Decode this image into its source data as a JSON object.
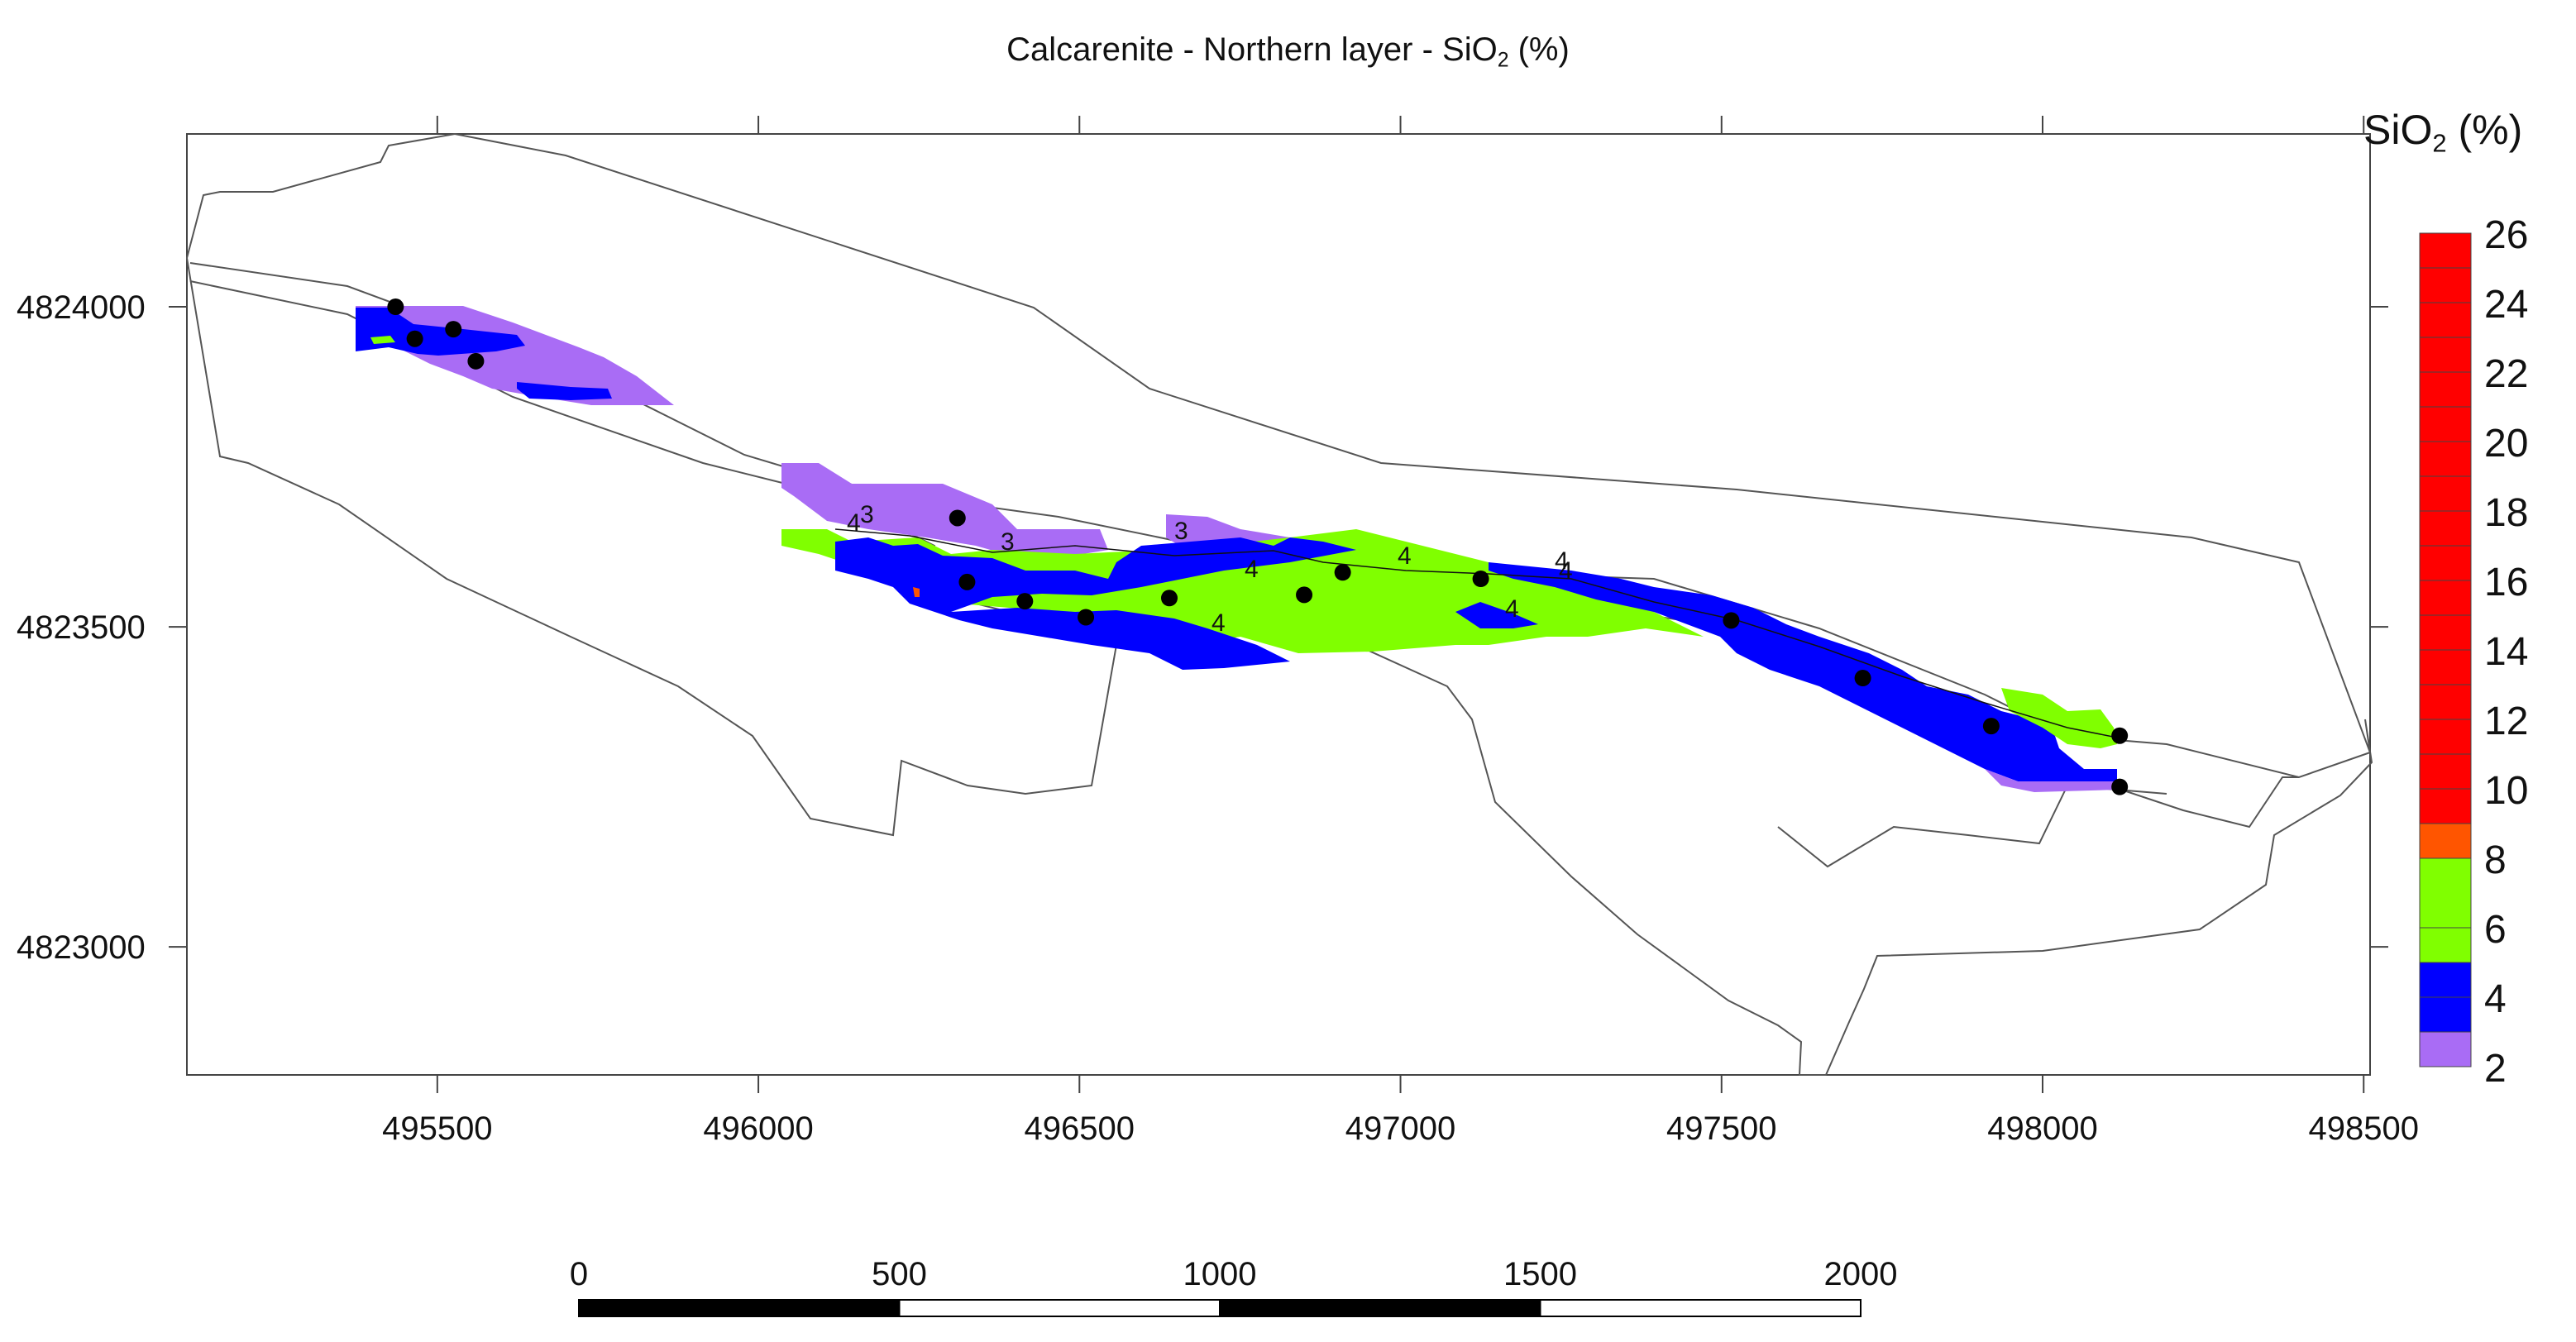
{
  "title": {
    "prefix": "Calcarenite - Northern layer - SiO",
    "sub": "2",
    "suffix": " (%)"
  },
  "axes": {
    "x_ticks": [
      "495500",
      "496000",
      "496500",
      "497000",
      "497500",
      "498000",
      "498500"
    ],
    "x_tick_values": [
      495500,
      496000,
      496500,
      497000,
      497500,
      498000,
      498500
    ],
    "y_ticks": [
      "4824000",
      "4823500",
      "4823000"
    ],
    "y_tick_values": [
      4824000,
      4823500,
      4823000
    ],
    "x_range": [
      495110,
      498510
    ],
    "y_range": [
      4822800,
      4824270
    ]
  },
  "legend": {
    "title_prefix": "SiO",
    "title_sub": "2",
    "title_suffix": " (%)",
    "labels": [
      "26",
      "24",
      "22",
      "20",
      "18",
      "16",
      "14",
      "12",
      "10",
      "8",
      "6",
      "4",
      "2"
    ],
    "colors": {
      "high": "#ff0000",
      "orange": "#ff5500",
      "green": "#80ff00",
      "blue": "#0000ff",
      "purple": "#a96cf5"
    }
  },
  "contour_labels": [
    "4",
    "3",
    "3",
    "3",
    "4",
    "4",
    "4",
    "4",
    "4",
    "4"
  ],
  "scale_bar": {
    "labels": [
      "0",
      "500",
      "1000",
      "1500",
      "2000"
    ],
    "values": [
      0,
      500,
      1000,
      1500,
      2000
    ]
  },
  "boreholes": [
    {
      "x": 495435,
      "y": 4824000
    },
    {
      "x": 495465,
      "y": 4823950
    },
    {
      "x": 495525,
      "y": 4823965
    },
    {
      "x": 495560,
      "y": 4823915
    },
    {
      "x": 496310,
      "y": 4823670
    },
    {
      "x": 496325,
      "y": 4823570
    },
    {
      "x": 496415,
      "y": 4823540
    },
    {
      "x": 496510,
      "y": 4823515
    },
    {
      "x": 496640,
      "y": 4823545
    },
    {
      "x": 496850,
      "y": 4823550
    },
    {
      "x": 496910,
      "y": 4823585
    },
    {
      "x": 497125,
      "y": 4823575
    },
    {
      "x": 497515,
      "y": 4823510
    },
    {
      "x": 497720,
      "y": 4823420
    },
    {
      "x": 497920,
      "y": 4823345
    },
    {
      "x": 498120,
      "y": 4823330
    },
    {
      "x": 498120,
      "y": 4823250
    }
  ]
}
